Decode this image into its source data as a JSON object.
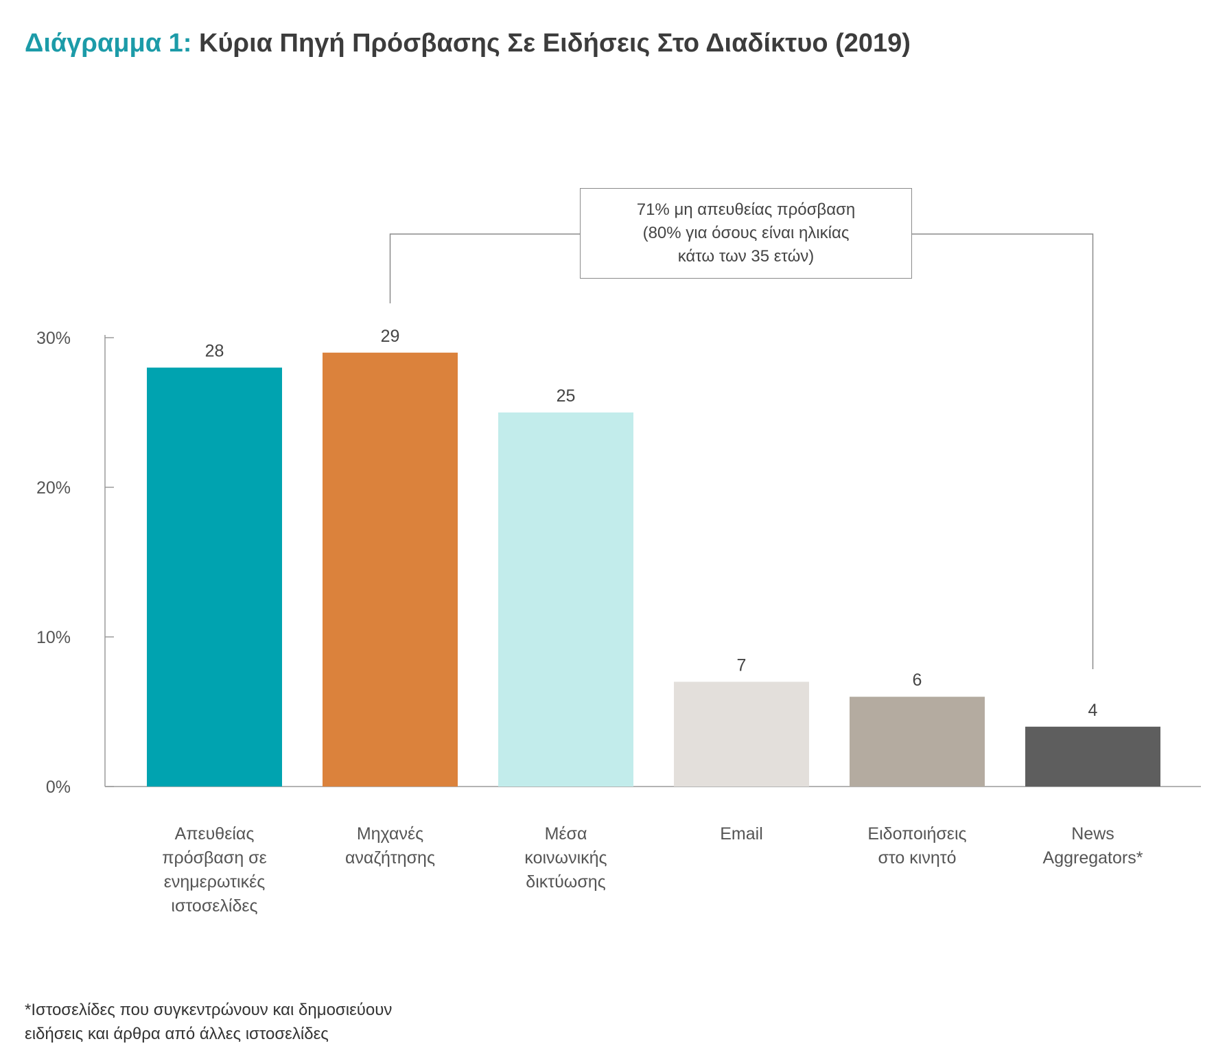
{
  "header": {
    "prefix": "Διάγραμμα 1:",
    "title": "Κύρια Πηγή Πρόσβασης Σε Ειδήσεις Στο Διαδίκτυο (2019)"
  },
  "annotation": {
    "lines": [
      "71% μη απευθείας πρόσβαση",
      "(80% για όσους είναι ηλικίας",
      "κάτω των 35 ετών)"
    ]
  },
  "footnote": {
    "lines": [
      "*Ιστοσελίδες που συγκεντρώνουν και δημοσιεύουν",
      "ειδήσεις και άρθρα από άλλες ιστοσελίδες"
    ]
  },
  "chart_data": {
    "type": "bar",
    "title": "Κύρια Πηγή Πρόσβασης Σε Ειδήσεις Στο Διαδίκτυο (2019)",
    "categories": [
      [
        "Απευθείας",
        "πρόσβαση σε",
        "ενημερωτικές",
        "ιστοσελίδες"
      ],
      [
        "Μηχανές",
        "αναζήτησης"
      ],
      [
        "Μέσα",
        "κοινωνικής",
        "δικτύωσης"
      ],
      [
        "Email"
      ],
      [
        "Ειδοποιήσεις",
        "στο κινητό"
      ],
      [
        "News",
        "Aggregators*"
      ]
    ],
    "values": [
      28,
      29,
      25,
      7,
      6,
      4
    ],
    "data_labels": [
      "28",
      "29",
      "25",
      "7",
      "6",
      "4"
    ],
    "colors": [
      "#00a3b0",
      "#db823c",
      "#c2eceb",
      "#e3dfdb",
      "#b4aba0",
      "#5e5e5e"
    ],
    "yticks": [
      0,
      10,
      20,
      30
    ],
    "ytick_labels": [
      "0%",
      "10%",
      "20%",
      "30%"
    ],
    "ylim": [
      0,
      30
    ],
    "xlabel": "",
    "ylabel": "",
    "grid": false,
    "bracket_span": [
      "Μηχανές αναζήτησης",
      "News Aggregators*"
    ]
  }
}
